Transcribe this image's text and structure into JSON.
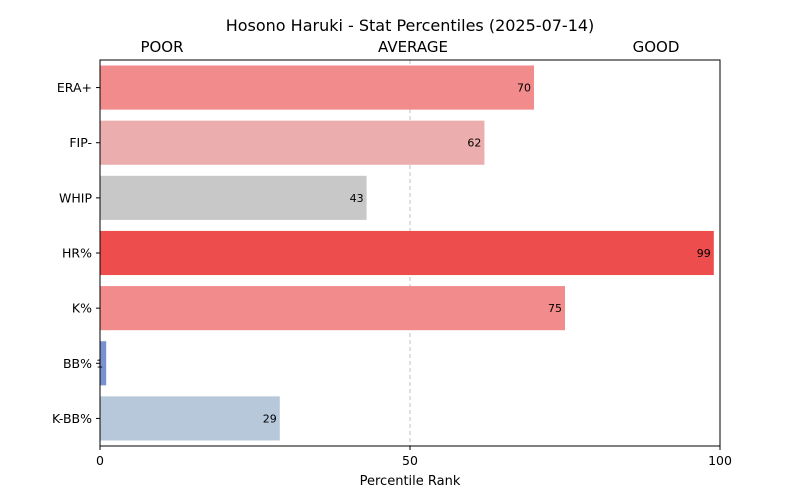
{
  "chart_data": {
    "type": "bar",
    "orientation": "horizontal",
    "title": "Hosono Haruki - Stat Percentiles (2025-07-14)",
    "band_labels": [
      "POOR",
      "AVERAGE",
      "GOOD"
    ],
    "categories": [
      "ERA+",
      "FIP-",
      "WHIP",
      "HR%",
      "K%",
      "BB%",
      "K-BB%"
    ],
    "values": [
      70,
      62,
      43,
      99,
      75,
      1,
      29
    ],
    "bar_colors": [
      "#f28b8b",
      "#ebadad",
      "#c8c8c8",
      "#ed4d4d",
      "#f28b8b",
      "#7892cf",
      "#b7c8db"
    ],
    "xlabel": "Percentile Rank",
    "ylabel": "",
    "xlim": [
      0,
      100
    ],
    "xticks": [
      0,
      50,
      100
    ],
    "reference_line": 50,
    "grid": false
  }
}
